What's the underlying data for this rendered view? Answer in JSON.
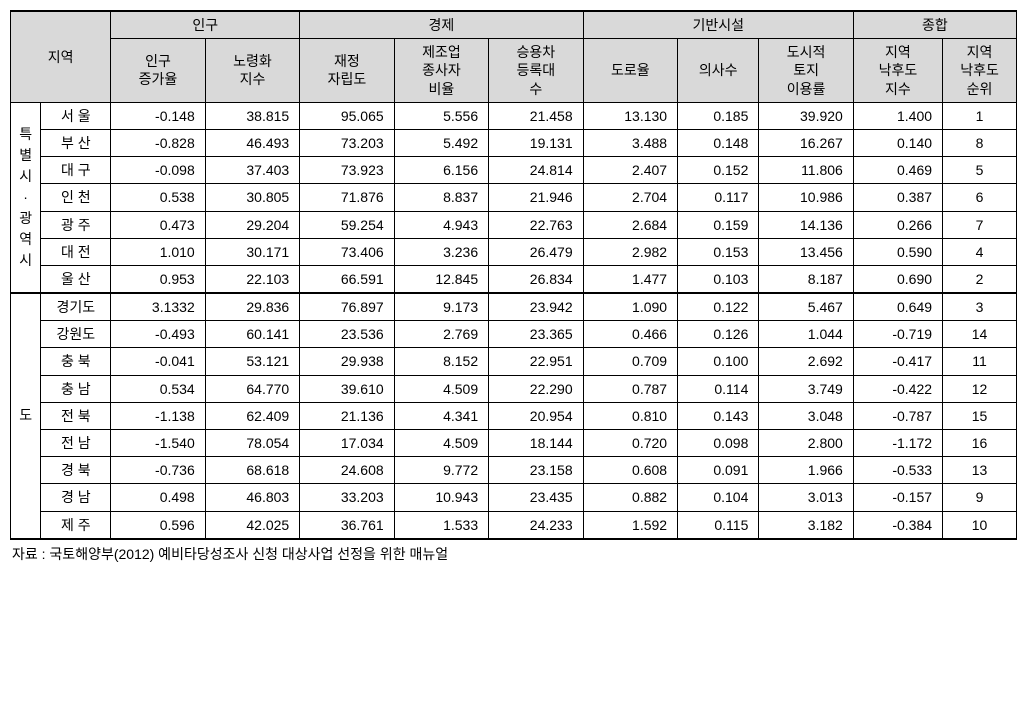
{
  "table": {
    "header_groups": {
      "region": "지역",
      "population": "인구",
      "economy": "경제",
      "infra": "기반시설",
      "total": "종합"
    },
    "columns": [
      "인구\n증가율",
      "노령화\n지수",
      "재정\n자립도",
      "제조업\n종사자\n비율",
      "승용차\n등록대\n수",
      "도로율",
      "의사수",
      "도시적\n토지\n이용률",
      "지역\n낙후도\n지수",
      "지역\n낙후도\n순위"
    ],
    "region_groups": [
      {
        "label": "특\n별\n시\n·\n광\n역\n시",
        "rowspan": 7
      },
      {
        "label": "도",
        "rowspan": 9
      }
    ],
    "rows": [
      {
        "group": 0,
        "city": "서 울",
        "vals": [
          "-0.148",
          "38.815",
          "95.065",
          "5.556",
          "21.458",
          "13.130",
          "0.185",
          "39.920",
          "1.400",
          "1"
        ]
      },
      {
        "group": 0,
        "city": "부 산",
        "vals": [
          "-0.828",
          "46.493",
          "73.203",
          "5.492",
          "19.131",
          "3.488",
          "0.148",
          "16.267",
          "0.140",
          "8"
        ]
      },
      {
        "group": 0,
        "city": "대 구",
        "vals": [
          "-0.098",
          "37.403",
          "73.923",
          "6.156",
          "24.814",
          "2.407",
          "0.152",
          "11.806",
          "0.469",
          "5"
        ]
      },
      {
        "group": 0,
        "city": "인 천",
        "vals": [
          "0.538",
          "30.805",
          "71.876",
          "8.837",
          "21.946",
          "2.704",
          "0.117",
          "10.986",
          "0.387",
          "6"
        ]
      },
      {
        "group": 0,
        "city": "광 주",
        "vals": [
          "0.473",
          "29.204",
          "59.254",
          "4.943",
          "22.763",
          "2.684",
          "0.159",
          "14.136",
          "0.266",
          "7"
        ]
      },
      {
        "group": 0,
        "city": "대 전",
        "vals": [
          "1.010",
          "30.171",
          "73.406",
          "3.236",
          "26.479",
          "2.982",
          "0.153",
          "13.456",
          "0.590",
          "4"
        ]
      },
      {
        "group": 0,
        "city": "울 산",
        "vals": [
          "0.953",
          "22.103",
          "66.591",
          "12.845",
          "26.834",
          "1.477",
          "0.103",
          "8.187",
          "0.690",
          "2"
        ]
      },
      {
        "group": 1,
        "city": "경기도",
        "vals": [
          "3.1332",
          "29.836",
          "76.897",
          "9.173",
          "23.942",
          "1.090",
          "0.122",
          "5.467",
          "0.649",
          "3"
        ]
      },
      {
        "group": 1,
        "city": "강원도",
        "vals": [
          "-0.493",
          "60.141",
          "23.536",
          "2.769",
          "23.365",
          "0.466",
          "0.126",
          "1.044",
          "-0.719",
          "14"
        ]
      },
      {
        "group": 1,
        "city": "충 북",
        "vals": [
          "-0.041",
          "53.121",
          "29.938",
          "8.152",
          "22.951",
          "0.709",
          "0.100",
          "2.692",
          "-0.417",
          "11"
        ]
      },
      {
        "group": 1,
        "city": "충 남",
        "vals": [
          "0.534",
          "64.770",
          "39.610",
          "4.509",
          "22.290",
          "0.787",
          "0.114",
          "3.749",
          "-0.422",
          "12"
        ]
      },
      {
        "group": 1,
        "city": "전 북",
        "vals": [
          "-1.138",
          "62.409",
          "21.136",
          "4.341",
          "20.954",
          "0.810",
          "0.143",
          "3.048",
          "-0.787",
          "15"
        ]
      },
      {
        "group": 1,
        "city": "전 남",
        "vals": [
          "-1.540",
          "78.054",
          "17.034",
          "4.509",
          "18.144",
          "0.720",
          "0.098",
          "2.800",
          "-1.172",
          "16"
        ]
      },
      {
        "group": 1,
        "city": "경 북",
        "vals": [
          "-0.736",
          "68.618",
          "24.608",
          "9.772",
          "23.158",
          "0.608",
          "0.091",
          "1.966",
          "-0.533",
          "13"
        ]
      },
      {
        "group": 1,
        "city": "경 남",
        "vals": [
          "0.498",
          "46.803",
          "33.203",
          "10.943",
          "23.435",
          "0.882",
          "0.104",
          "3.013",
          "-0.157",
          "9"
        ]
      },
      {
        "group": 1,
        "city": "제 주",
        "vals": [
          "0.596",
          "42.025",
          "36.761",
          "1.533",
          "24.233",
          "1.592",
          "0.115",
          "3.182",
          "-0.384",
          "10"
        ]
      }
    ]
  },
  "footnote": "자료 : 국토해양부(2012) 예비타당성조사 신청 대상사업 선정을 위한 매뉴얼"
}
